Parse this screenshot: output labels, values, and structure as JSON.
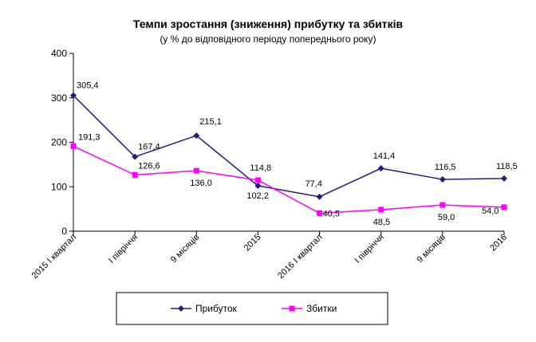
{
  "chart_data": {
    "type": "line",
    "title": "Темпи зростання (зниження) прибутку та збитків",
    "subtitle": "(у % до відповідного періоду попереднього року)",
    "categories": [
      "2015 І квартал",
      "І півріччя",
      "9 місяців",
      "2015",
      "2016 І квартал",
      "І півріччя",
      "9 місяців",
      "2016"
    ],
    "ylim": [
      0,
      400
    ],
    "yticks": [
      0,
      100,
      200,
      300,
      400
    ],
    "series": [
      {
        "name": "Прибуток",
        "color": "#1f1f7a",
        "marker": "diamond",
        "values": [
          305.4,
          167.4,
          215.1,
          102.2,
          77.4,
          141.4,
          116.5,
          118.5
        ],
        "labels": [
          "305,4",
          "167,4",
          "215,1",
          "102,2",
          "77,4",
          "141,4",
          "116,5",
          "118,5"
        ]
      },
      {
        "name": "Збитки",
        "color": "#ff00ff",
        "marker": "square",
        "values": [
          191.3,
          126.6,
          136.0,
          114.8,
          40.5,
          48.5,
          59.0,
          54.0
        ],
        "labels": [
          "191,3",
          "126,6",
          "136,0",
          "114,8",
          "40,5",
          "48,5",
          "59,0",
          "54,0"
        ]
      }
    ],
    "legend_position": "bottom",
    "grid": false
  }
}
